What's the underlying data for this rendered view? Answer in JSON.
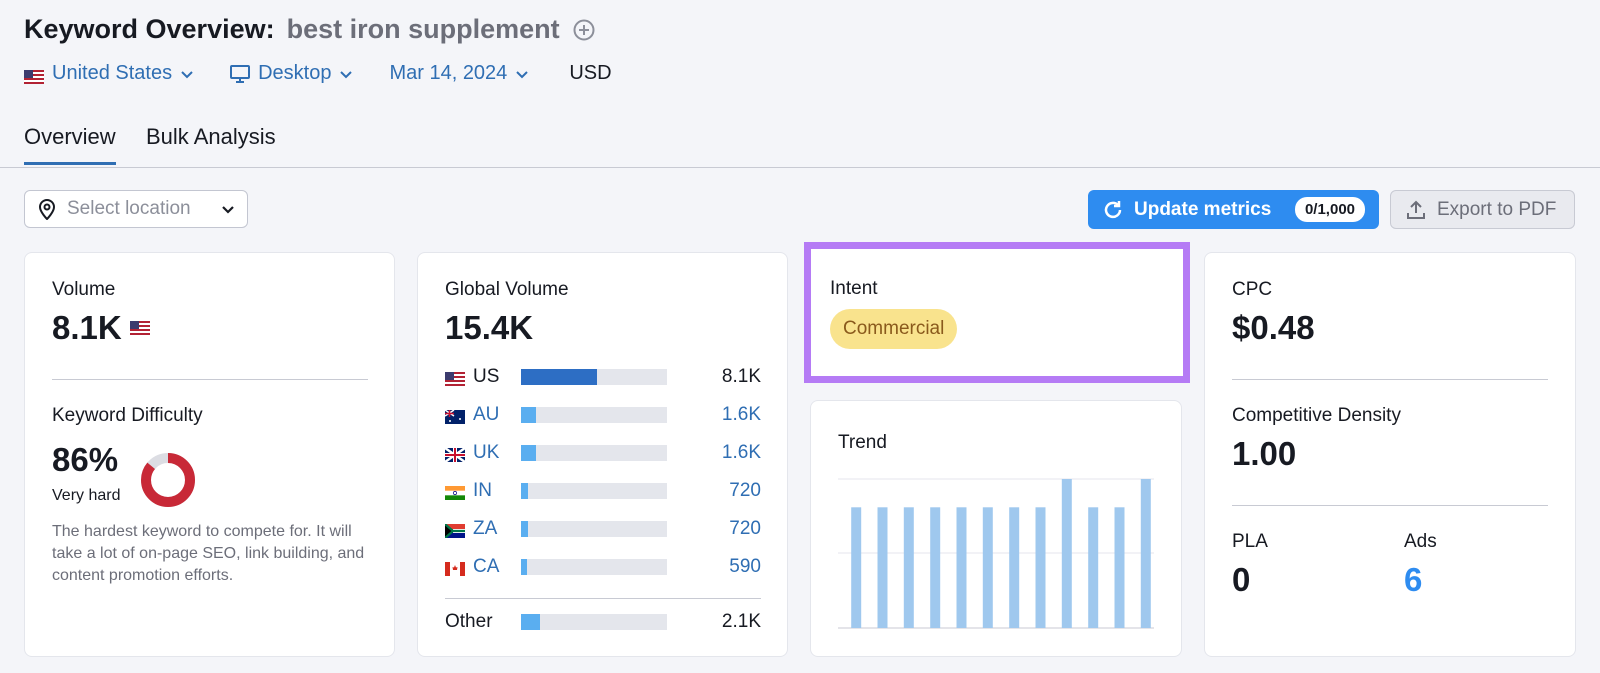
{
  "header": {
    "title": "Keyword Overview:",
    "keyword": "best iron supplement"
  },
  "filters": {
    "country": "United States",
    "device": "Desktop",
    "date": "Mar 14, 2024",
    "currency": "USD"
  },
  "tabs": [
    {
      "label": "Overview",
      "active": true
    },
    {
      "label": "Bulk Analysis",
      "active": false
    }
  ],
  "toolbar": {
    "location_placeholder": "Select location",
    "update_label": "Update metrics",
    "update_count": "0/1,000",
    "export_label": "Export to PDF"
  },
  "volume": {
    "label": "Volume",
    "value": "8.1K"
  },
  "difficulty": {
    "label": "Keyword Difficulty",
    "value": "86%",
    "percent": 86,
    "level": "Very hard",
    "description": "The hardest keyword to compete for. It will take a lot of on-page SEO, link building, and content promotion efforts.",
    "color": "#c82937"
  },
  "global_volume": {
    "label": "Global Volume",
    "value": "15.4K",
    "countries": [
      {
        "code": "US",
        "value": "8.1K",
        "share": 0.52,
        "primary": true
      },
      {
        "code": "AU",
        "value": "1.6K",
        "share": 0.1,
        "primary": false
      },
      {
        "code": "UK",
        "value": "1.6K",
        "share": 0.1,
        "primary": false
      },
      {
        "code": "IN",
        "value": "720",
        "share": 0.05,
        "primary": false
      },
      {
        "code": "ZA",
        "value": "720",
        "share": 0.05,
        "primary": false
      },
      {
        "code": "CA",
        "value": "590",
        "share": 0.04,
        "primary": false
      }
    ],
    "other": {
      "label": "Other",
      "value": "2.1K",
      "share": 0.13
    }
  },
  "intent": {
    "label": "Intent",
    "value": "Commercial"
  },
  "trend": {
    "label": "Trend",
    "values": [
      0.81,
      0.81,
      0.81,
      0.81,
      0.81,
      0.81,
      0.81,
      0.81,
      1.0,
      0.81,
      0.81,
      1.0
    ]
  },
  "cpc": {
    "label": "CPC",
    "value": "$0.48"
  },
  "competitive_density": {
    "label": "Competitive Density",
    "value": "1.00"
  },
  "pla": {
    "label": "PLA",
    "value": "0"
  },
  "ads": {
    "label": "Ads",
    "value": "6"
  },
  "colors": {
    "accent": "#2e8cf0",
    "link": "#2f6eb3",
    "bar_primary": "#2d6ec4",
    "bar_secondary": "#5aaef0",
    "trend_bar": "#9fc8ee",
    "intent_highlight": "#b57bf5",
    "intent_badge": "#f9e38d"
  }
}
